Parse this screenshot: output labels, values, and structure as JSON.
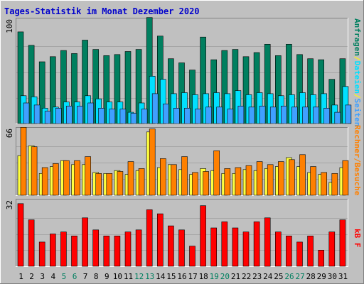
{
  "title": "Tages-Statistik im Monat Dezember 2020",
  "colors": {
    "background": "#c0c0c0",
    "title": "#0000cc",
    "panel_bg": "#c0c0c0",
    "grid": "#a6a6a6",
    "anfragen": "#007f5f",
    "dateien": "#00e0ff",
    "seiten": "#40a0ff",
    "rechner": "#ffff40",
    "besuche": "#ff8000",
    "kb": "#ff0000",
    "weekday_label": "#000000",
    "weekend_label": "#007f5f"
  },
  "legend": {
    "anfragen": "Anfragen",
    "slash1": "/",
    "dateien": "Dateien",
    "slash2": "/",
    "seiten": "Seiten",
    "rechner": "Rechner",
    "slash3": "/",
    "besuche": "Besuche",
    "kbf": "kB F"
  },
  "chart_data": {
    "type": "bar",
    "title": "Tages-Statistik im Monat Dezember 2020",
    "categories": [
      "1",
      "2",
      "3",
      "4",
      "5",
      "6",
      "7",
      "8",
      "9",
      "10",
      "11",
      "12",
      "13",
      "14",
      "15",
      "16",
      "17",
      "18",
      "19",
      "20",
      "21",
      "22",
      "23",
      "24",
      "25",
      "26",
      "27",
      "28",
      "29",
      "30",
      "31"
    ],
    "weekend_days": [
      "5",
      "6",
      "12",
      "13",
      "19",
      "20",
      "26",
      "27"
    ],
    "panels": [
      {
        "id": "requests",
        "ymax": 100,
        "ymax_label": "100",
        "series": [
          {
            "name": "Anfragen",
            "color": "#007f5f",
            "values": [
              89,
              76,
              60,
              65,
              71,
              68,
              81,
              72,
              66,
              67,
              70,
              72,
              103,
              85,
              63,
              59,
              52,
              84,
              62,
              71,
              72,
              65,
              69,
              77,
              66,
              77,
              67,
              63,
              62,
              43,
              63
            ]
          },
          {
            "name": "Dateien",
            "color": "#00e0ff",
            "values": [
              27,
              26,
              15,
              16,
              21,
              21,
              27,
              24,
              21,
              21,
              11,
              20,
              46,
              43,
              29,
              30,
              28,
              29,
              30,
              29,
              32,
              28,
              30,
              29,
              27,
              28,
              30,
              28,
              29,
              18,
              36
            ]
          },
          {
            "name": "Seiten",
            "color": "#40a0ff",
            "values": [
              20,
              18,
              12,
              15,
              17,
              17,
              20,
              15,
              14,
              14,
              10,
              14,
              29,
              19,
              15,
              15,
              14,
              16,
              16,
              14,
              17,
              16,
              17,
              16,
              17,
              16,
              16,
              16,
              15,
              11,
              18
            ]
          }
        ]
      },
      {
        "id": "visits",
        "ymax": 66,
        "ymax_label": "66",
        "series": [
          {
            "name": "Rechner",
            "color": "#ffff40",
            "values": [
              40,
              50,
              22,
              29,
              35,
              31,
              31,
              23,
              22,
              25,
              21,
              25,
              64,
              28,
              31,
              26,
              21,
              27,
              25,
              22,
              22,
              26,
              25,
              27,
              29,
              38,
              29,
              23,
              21,
              13,
              28
            ]
          },
          {
            "name": "Besuche",
            "color": "#ff8000",
            "values": [
              69,
              49,
              28,
              32,
              35,
              35,
              39,
              22,
              22,
              24,
              34,
              27,
              67,
              37,
              31,
              39,
              23,
              24,
              45,
              27,
              28,
              30,
              34,
              31,
              34,
              36,
              41,
              29,
              23,
              22,
              35
            ]
          }
        ]
      },
      {
        "id": "kb",
        "ymax": 32,
        "ymax_label": "32",
        "series": [
          {
            "name": "kB F",
            "color": "#ff0000",
            "values": [
              31,
              23,
              12,
              16,
              17,
              15,
              24,
              18,
              15,
              15,
              17,
              18,
              28,
              26,
              20,
              18,
              10,
              30,
              19,
              22,
              19,
              17,
              22,
              24,
              17,
              15,
              12,
              15,
              8,
              17,
              23
            ]
          }
        ]
      }
    ]
  }
}
